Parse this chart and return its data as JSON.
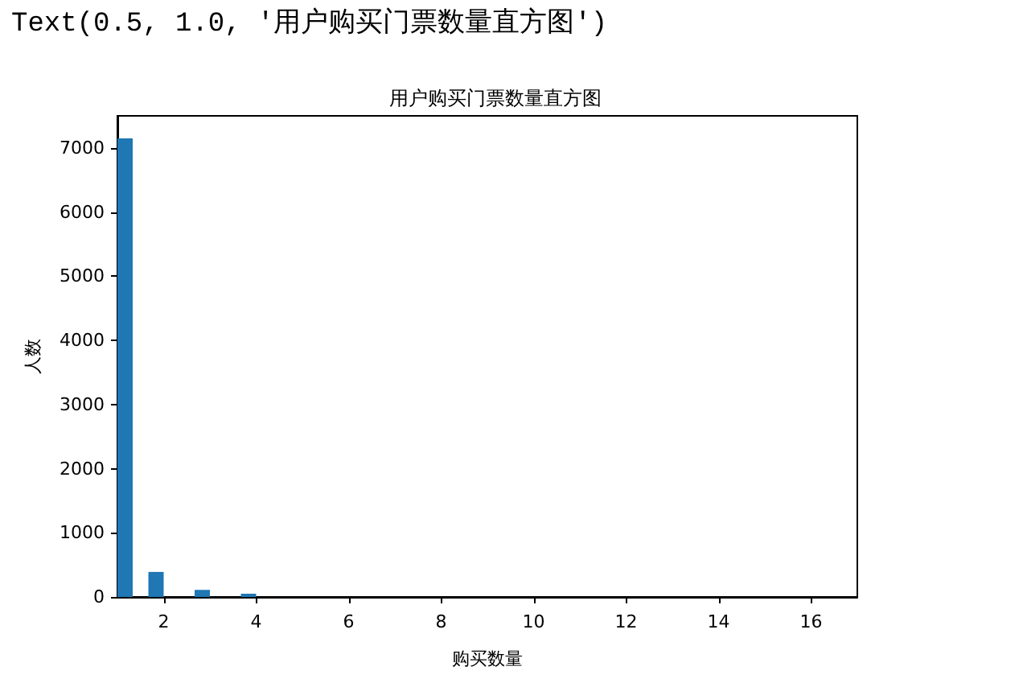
{
  "chart_data": {
    "type": "histogram",
    "title": "用户购买门票数量直方图",
    "xlabel": "购买数量",
    "ylabel": "人数",
    "annotations": [
      "Text(0.5, 1.0, '用户购买门票数量直方图')"
    ],
    "bins": [
      1,
      1.33,
      1.67,
      2,
      2.67,
      3,
      3.67,
      4
    ],
    "values": [
      7150,
      0,
      390,
      0,
      110,
      0,
      50
    ],
    "color": "#1f77b4",
    "xlim": [
      1,
      17
    ],
    "ylim": [
      0,
      7500
    ],
    "xticks": [
      2,
      4,
      6,
      8,
      10,
      12,
      14,
      16
    ],
    "yticks": [
      0,
      1000,
      2000,
      3000,
      4000,
      5000,
      6000,
      7000
    ],
    "grid": false
  }
}
